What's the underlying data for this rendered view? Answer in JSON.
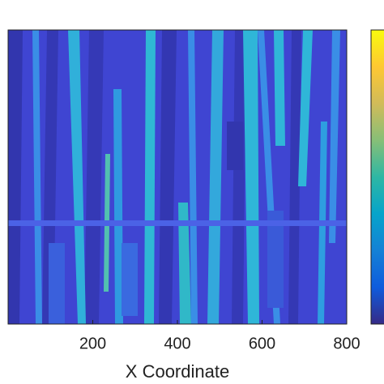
{
  "chart_data": {
    "type": "heatmap",
    "xlabel": "X Coordinate",
    "xlim": [
      0,
      800
    ],
    "xticks": [
      200,
      400,
      600,
      800
    ],
    "colormap": [
      "#352a87",
      "#0f5cdd",
      "#1481d6",
      "#06a4ca",
      "#2eb7a4",
      "#87bf77",
      "#d1bb59",
      "#fec832",
      "#f9fb0e"
    ]
  }
}
